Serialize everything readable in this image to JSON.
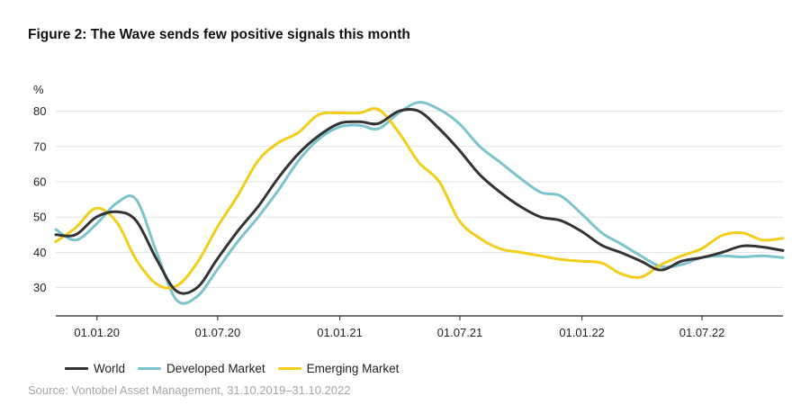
{
  "title": "Figure 2: The Wave sends few positive signals this month",
  "source": "Source: Vontobel Asset Management, 31.10.2019–31.10.2022",
  "chart_data": {
    "type": "line",
    "ylabel": "%",
    "ylim": [
      22,
      86
    ],
    "yticks": [
      30,
      40,
      50,
      60,
      70,
      80
    ],
    "grid": true,
    "legend_position": "bottom-left",
    "x_range": [
      "31.10.2019",
      "31.10.2022"
    ],
    "x_ticks": [
      "01.01.20",
      "01.07.20",
      "01.01.21",
      "01.07.21",
      "01.01.22",
      "01.07.22"
    ],
    "series": [
      {
        "name": "World",
        "color": "#333333",
        "x": [
          "31.10.2019",
          "30.11.2019",
          "31.12.2019",
          "31.01.2020",
          "29.02.2020",
          "31.03.2020",
          "30.04.2020",
          "31.05.2020",
          "30.06.2020",
          "31.07.2020",
          "31.08.2020",
          "30.09.2020",
          "31.10.2020",
          "30.11.2020",
          "31.12.2020",
          "31.01.2021",
          "28.02.2021",
          "31.03.2021",
          "30.04.2021",
          "31.05.2021",
          "30.06.2021",
          "31.07.2021",
          "31.08.2021",
          "30.09.2021",
          "31.10.2021",
          "30.11.2021",
          "31.12.2021",
          "31.01.2022",
          "28.02.2022",
          "31.03.2022",
          "30.04.2022",
          "31.05.2022",
          "30.06.2022",
          "31.07.2022",
          "31.08.2022",
          "30.09.2022",
          "31.10.2022"
        ],
        "values": [
          45,
          45,
          50,
          51.5,
          49,
          38,
          29,
          30,
          38,
          46,
          53,
          61,
          68,
          73,
          76.5,
          77,
          76.5,
          80,
          80,
          75,
          69,
          62,
          57,
          53,
          50,
          49,
          46,
          42,
          40,
          37.5,
          35,
          37.5,
          38.5,
          40,
          41.8,
          41.5,
          40.5
        ]
      },
      {
        "name": "Developed Market",
        "color": "#7cc4cc",
        "x": [
          "31.10.2019",
          "30.11.2019",
          "31.12.2019",
          "31.01.2020",
          "29.02.2020",
          "31.03.2020",
          "30.04.2020",
          "31.05.2020",
          "30.06.2020",
          "31.07.2020",
          "31.08.2020",
          "30.09.2020",
          "31.10.2020",
          "30.11.2020",
          "31.12.2020",
          "31.01.2021",
          "28.02.2021",
          "31.03.2021",
          "30.04.2021",
          "31.05.2021",
          "30.06.2021",
          "31.07.2021",
          "31.08.2021",
          "30.09.2021",
          "31.10.2021",
          "30.11.2021",
          "31.12.2021",
          "31.01.2022",
          "28.02.2022",
          "31.03.2022",
          "30.04.2022",
          "31.05.2022",
          "30.06.2022",
          "31.07.2022",
          "31.08.2022",
          "30.09.2022",
          "31.10.2022"
        ],
        "values": [
          46.5,
          43.5,
          48,
          54,
          55,
          40,
          26.5,
          27.5,
          35,
          43,
          50,
          57.5,
          66,
          72,
          75.5,
          76,
          75,
          79.5,
          82.5,
          80.5,
          76.5,
          70,
          65.5,
          61,
          57,
          56,
          51,
          45.5,
          42.5,
          39,
          36,
          36.5,
          38.5,
          39,
          38.7,
          39,
          38.5
        ]
      },
      {
        "name": "Emerging Market",
        "color": "#f2cd1a",
        "x": [
          "31.10.2019",
          "30.11.2019",
          "31.12.2019",
          "31.01.2020",
          "29.02.2020",
          "31.03.2020",
          "30.04.2020",
          "31.05.2020",
          "30.06.2020",
          "31.07.2020",
          "31.08.2020",
          "30.09.2020",
          "31.10.2020",
          "30.11.2020",
          "31.12.2020",
          "31.01.2021",
          "28.02.2021",
          "31.03.2021",
          "30.04.2021",
          "31.05.2021",
          "30.06.2021",
          "31.07.2021",
          "31.08.2021",
          "30.09.2021",
          "31.10.2021",
          "30.11.2021",
          "31.12.2021",
          "31.01.2022",
          "28.02.2022",
          "31.03.2022",
          "30.04.2022",
          "31.05.2022",
          "30.06.2022",
          "31.07.2022",
          "31.08.2022",
          "30.09.2022",
          "31.10.2022"
        ],
        "values": [
          43,
          47,
          52.5,
          48.5,
          38,
          31,
          30.5,
          37,
          47,
          56,
          66,
          71,
          74,
          79,
          79.5,
          79.5,
          80.5,
          74,
          65.5,
          60,
          49,
          44,
          41,
          40,
          39,
          38,
          37.5,
          37,
          34,
          33,
          36.5,
          39,
          41,
          44.8,
          45.5,
          43.5,
          44
        ]
      }
    ]
  }
}
